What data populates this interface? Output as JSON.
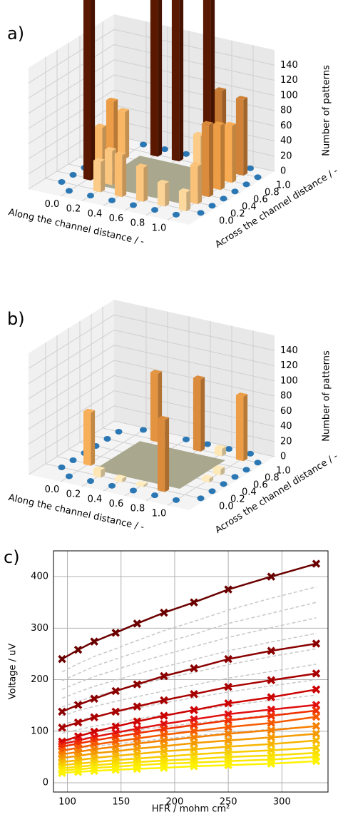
{
  "chart_data": [
    {
      "type": "bar3d",
      "label": "a)",
      "xlabel": "Along the channel distance / -",
      "ylabel": "Across the channel distance / -",
      "zlabel": "Number of patterns",
      "xlim": [
        -0.3,
        1.2
      ],
      "ylim": [
        -0.3,
        1.2
      ],
      "zlim": [
        0,
        160
      ],
      "xticks": [
        {
          "value": 0,
          "label": "0.0"
        },
        {
          "value": 0.2,
          "label": "0.2"
        },
        {
          "value": 0.4,
          "label": "0.4"
        },
        {
          "value": 0.6,
          "label": "0.6"
        },
        {
          "value": 0.8,
          "label": "0.8"
        },
        {
          "value": 1,
          "label": "1.0"
        }
      ],
      "yticks": [
        {
          "value": 0,
          "label": "0.0"
        },
        {
          "value": 0.2,
          "label": "0.2"
        },
        {
          "value": 0.4,
          "label": "0.4"
        },
        {
          "value": 0.6,
          "label": "0.6"
        },
        {
          "value": 0.8,
          "label": "0.8"
        },
        {
          "value": 1,
          "label": "1.0"
        }
      ],
      "zticks": [
        0,
        20,
        40,
        60,
        80,
        100,
        120,
        140
      ],
      "colormap": [
        "#fff0c4",
        "#f7a64a",
        "#5a1800"
      ],
      "bars": {
        "x": [
          0,
          0,
          0,
          0,
          0.2,
          0.2,
          0.4,
          0.4,
          0.6,
          0.6,
          0.8,
          0.8,
          1,
          1,
          1,
          1,
          1,
          1,
          0.2,
          0.8
        ],
        "y": [
          0.2,
          0.4,
          0.6,
          0.8,
          0,
          1,
          0,
          1,
          0,
          1,
          0,
          1,
          0,
          0.2,
          0.4,
          0.6,
          0.8,
          1,
          0.2,
          0.8
        ],
        "values": [
          250,
          60,
          85,
          62,
          40,
          250,
          55,
          250,
          45,
          40,
          30,
          105,
          25,
          50,
          95,
          85,
          75,
          100,
          45,
          250
        ]
      }
    },
    {
      "type": "bar3d",
      "label": "b)",
      "xlabel": "Along the channel distance / -",
      "ylabel": "Across the channel distance / -",
      "zlabel": "Number of patterns",
      "xlim": [
        -0.3,
        1.2
      ],
      "ylim": [
        -0.3,
        1.2
      ],
      "zlim": [
        0,
        160
      ],
      "xticks": [
        {
          "value": 0,
          "label": "0.0"
        },
        {
          "value": 0.2,
          "label": "0.2"
        },
        {
          "value": 0.4,
          "label": "0.4"
        },
        {
          "value": 0.6,
          "label": "0.6"
        },
        {
          "value": 0.8,
          "label": "0.8"
        },
        {
          "value": 1,
          "label": "1.0"
        }
      ],
      "yticks": [
        {
          "value": 0,
          "label": "0.0"
        },
        {
          "value": 0.2,
          "label": "0.2"
        },
        {
          "value": 0.4,
          "label": "0.4"
        },
        {
          "value": 0.6,
          "label": "0.6"
        },
        {
          "value": 0.8,
          "label": "0.8"
        },
        {
          "value": 1,
          "label": "1.0"
        }
      ],
      "zticks": [
        0,
        20,
        40,
        60,
        80,
        100,
        120,
        140
      ],
      "colormap": [
        "#fff0c4",
        "#f7a64a",
        "#5a1800"
      ],
      "bars": {
        "x": [
          0,
          0.2,
          0.6,
          1,
          0.8,
          0.2,
          0.4,
          0.6,
          1,
          1,
          0.8
        ],
        "y": [
          0.2,
          1,
          1,
          1,
          0,
          0,
          0,
          0,
          0.6,
          0.4,
          1
        ],
        "values": [
          70,
          90,
          95,
          85,
          95,
          10,
          5,
          3,
          8,
          5,
          10
        ]
      }
    },
    {
      "type": "line",
      "label": "c)",
      "xlabel": "HFR / mohm cm²",
      "ylabel": "Voltage / uV",
      "x": [
        95,
        110,
        125,
        145,
        165,
        190,
        218,
        250,
        290,
        332
      ],
      "xlim": [
        87,
        343
      ],
      "ylim": [
        -18,
        450
      ],
      "xticks": [
        100,
        150,
        200,
        250,
        300
      ],
      "yticks": [
        0,
        100,
        200,
        300,
        400
      ],
      "grid": true,
      "series": [
        {
          "color": "#c8c8c8",
          "style": "dashed",
          "values": [
            215,
            231,
            245,
            260,
            276,
            295,
            313,
            335,
            358,
            380
          ]
        },
        {
          "color": "#c8c8c8",
          "style": "dashed",
          "values": [
            198,
            212,
            226,
            240,
            254,
            272,
            288,
            309,
            329,
            350
          ]
        },
        {
          "color": "#c8c8c8",
          "style": "dashed",
          "values": [
            181,
            194,
            206,
            219,
            233,
            248,
            264,
            282,
            301,
            320
          ]
        },
        {
          "color": "#c8c8c8",
          "style": "dashed",
          "values": [
            164,
            176,
            187,
            199,
            211,
            225,
            239,
            256,
            273,
            290
          ]
        },
        {
          "color": "#c8c8c8",
          "style": "dashed",
          "values": [
            147,
            158,
            168,
            178,
            189,
            202,
            214,
            229,
            245,
            260
          ]
        },
        {
          "color": "#c8c8c8",
          "style": "dashed",
          "values": [
            130,
            140,
            148,
            158,
            167,
            178,
            190,
            203,
            216,
            230
          ]
        },
        {
          "color": "#c8c8c8",
          "style": "dashed",
          "values": [
            113,
            121,
            129,
            137,
            145,
            155,
            165,
            176,
            188,
            200
          ]
        },
        {
          "color": "#c8c8c8",
          "style": "dashed",
          "values": [
            96,
            103,
            110,
            116,
            124,
            132,
            140,
            150,
            160,
            170
          ]
        },
        {
          "color": "#c8c8c8",
          "style": "dashed",
          "values": [
            79,
            85,
            90,
            96,
            102,
            109,
            115,
            123,
            132,
            140
          ]
        },
        {
          "color": "#c8c8c8",
          "style": "dashed",
          "values": [
            62,
            67,
            71,
            75,
            80,
            85,
            91,
            97,
            104,
            110
          ]
        },
        {
          "color": "#6b0000",
          "style": "solid",
          "values": [
            240,
            258,
            274,
            291,
            309,
            330,
            350,
            375,
            400,
            425
          ]
        },
        {
          "color": "#8a0000",
          "style": "solid",
          "values": [
            138,
            151,
            163,
            178,
            191,
            207,
            222,
            240,
            256,
            270
          ]
        },
        {
          "color": "#a80000",
          "style": "solid",
          "values": [
            107,
            117,
            127,
            138,
            148,
            160,
            172,
            186,
            199,
            212
          ]
        },
        {
          "color": "#cc0000",
          "style": "solid",
          "values": [
            80,
            90,
            99,
            109,
            119,
            130,
            141,
            154,
            166,
            181
          ]
        },
        {
          "color": "#e01010",
          "style": "solid",
          "values": [
            75,
            82,
            89,
            97,
            105,
            114,
            123,
            133,
            142,
            151
          ]
        },
        {
          "color": "#f03000",
          "style": "solid",
          "values": [
            70,
            76,
            82,
            89,
            96,
            104,
            112,
            121,
            130,
            140
          ]
        },
        {
          "color": "#f55a00",
          "style": "solid",
          "values": [
            62,
            68,
            74,
            80,
            86,
            93,
            100,
            108,
            116,
            128
          ]
        },
        {
          "color": "#f58000",
          "style": "solid",
          "values": [
            55,
            60,
            65,
            70,
            76,
            82,
            88,
            95,
            102,
            110
          ]
        },
        {
          "color": "#f59a00",
          "style": "solid",
          "values": [
            48,
            52,
            57,
            61,
            66,
            71,
            77,
            82,
            88,
            95
          ]
        },
        {
          "color": "#f7b500",
          "style": "solid",
          "values": [
            40,
            44,
            48,
            52,
            56,
            61,
            65,
            70,
            75,
            82
          ]
        },
        {
          "color": "#f8cc00",
          "style": "solid",
          "values": [
            34,
            37,
            40,
            44,
            47,
            51,
            55,
            59,
            63,
            68
          ]
        },
        {
          "color": "#fadd00",
          "style": "solid",
          "values": [
            28,
            31,
            34,
            37,
            40,
            43,
            46,
            50,
            53,
            58
          ]
        },
        {
          "color": "#fbe800",
          "style": "solid",
          "values": [
            24,
            26,
            29,
            31,
            34,
            37,
            39,
            42,
            45,
            50
          ]
        },
        {
          "color": "#fdf200",
          "style": "solid",
          "values": [
            19,
            21,
            23,
            25,
            27,
            29,
            32,
            34,
            37,
            42
          ]
        }
      ]
    }
  ]
}
